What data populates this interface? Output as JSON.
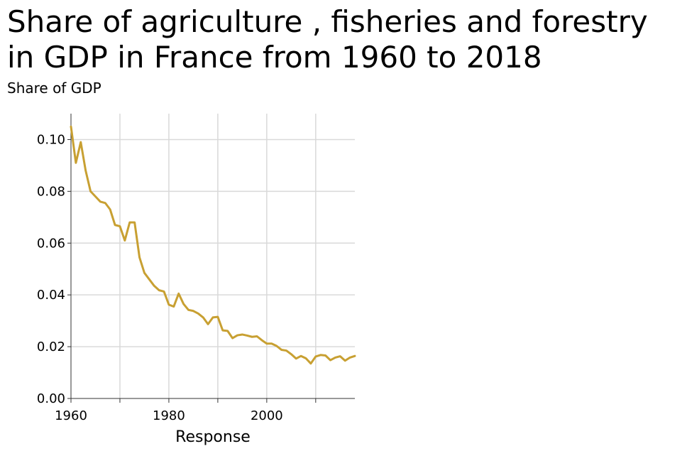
{
  "chart_data": {
    "type": "line",
    "title": "Share of agriculture , fisheries and forestry in GDP in France from 1960 to 2018",
    "ylabel": "Share of GDP",
    "xlabel": "Response",
    "xlim": [
      1960,
      2018
    ],
    "ylim": [
      0,
      0.11
    ],
    "xticks": [
      1960,
      1980,
      2000
    ],
    "xtick_labels": [
      "1960",
      "1980",
      "2000"
    ],
    "yticks": [
      0,
      0.02,
      0.04,
      0.06,
      0.08,
      0.1
    ],
    "ytick_labels": [
      "0.00",
      "0.02",
      "0.04",
      "0.06",
      "0.08",
      "0.10"
    ],
    "x_gridlines": [
      1970,
      1980,
      1990,
      2000,
      2010
    ],
    "grid": true,
    "line_color": "#c8a032",
    "series": [
      {
        "x": [
          1960,
          1961,
          1962,
          1963,
          1964,
          1965,
          1966,
          1967,
          1968,
          1969,
          1970,
          1971,
          1972,
          1973,
          1974,
          1975,
          1976,
          1977,
          1978,
          1979,
          1980,
          1981,
          1982,
          1983,
          1984,
          1985,
          1986,
          1987,
          1988,
          1989,
          1990,
          1991,
          1992,
          1993,
          1994,
          1995,
          1996,
          1997,
          1998,
          1999,
          2000,
          2001,
          2002,
          2003,
          2004,
          2005,
          2006,
          2007,
          2008,
          2009,
          2010,
          2011,
          2012,
          2013,
          2014,
          2015,
          2016,
          2017,
          2018
        ],
        "values": [
          0.105,
          0.091,
          0.099,
          0.088,
          0.08,
          0.078,
          0.076,
          0.0755,
          0.073,
          0.067,
          0.0665,
          0.061,
          0.068,
          0.068,
          0.0545,
          0.0485,
          0.046,
          0.0435,
          0.0418,
          0.0413,
          0.0362,
          0.0355,
          0.0405,
          0.0365,
          0.0342,
          0.0338,
          0.0328,
          0.0313,
          0.0287,
          0.0313,
          0.0315,
          0.0263,
          0.0261,
          0.0233,
          0.0244,
          0.0247,
          0.0243,
          0.0238,
          0.024,
          0.0225,
          0.0212,
          0.0212,
          0.0203,
          0.0188,
          0.0185,
          0.0171,
          0.0154,
          0.0164,
          0.0155,
          0.0135,
          0.0162,
          0.0168,
          0.0166,
          0.0148,
          0.0158,
          0.0163,
          0.0146,
          0.0158,
          0.0164
        ]
      }
    ]
  }
}
